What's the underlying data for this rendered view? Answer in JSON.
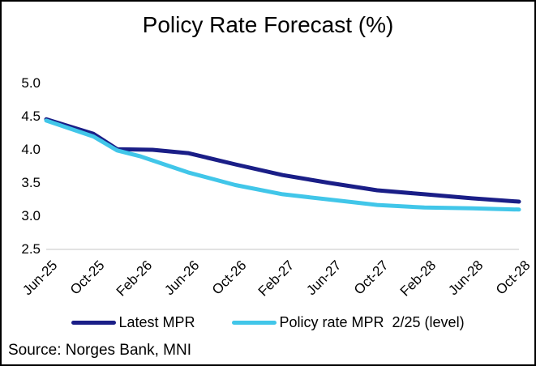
{
  "title": "Policy Rate Forecast (%)",
  "source_note": "Source: Norges Bank, MNI",
  "colors": {
    "latest_mpr": "#1A1E87",
    "mpr_2_25": "#41C6E9",
    "axis_line": "#D8D8D8",
    "text": "#000000",
    "background": "#FFFFFF"
  },
  "chart_data": {
    "type": "line",
    "title": "Policy Rate Forecast (%)",
    "xlabel": "",
    "ylabel": "",
    "x_unit": "months after Jun-2025",
    "xlim_months": [
      0,
      40
    ],
    "ylim": [
      2.5,
      5.0
    ],
    "grid": false,
    "axis_line": "bottom-only",
    "legend_position": "bottom",
    "x_tick_labels": [
      "Jun-25",
      "Oct-25",
      "Feb-26",
      "Jun-26",
      "Oct-26",
      "Feb-27",
      "Jun-27",
      "Oct-27",
      "Feb-28",
      "Jun-28",
      "Oct-28"
    ],
    "x_tick_months": [
      0,
      4,
      8,
      12,
      16,
      20,
      24,
      28,
      32,
      36,
      40
    ],
    "y_tick_labels": [
      "5.0",
      "4.5",
      "4.0",
      "3.5",
      "3.0",
      "2.5"
    ],
    "series": [
      {
        "name": "Latest MPR",
        "color": "#1A1E87",
        "points": [
          [
            0,
            4.46
          ],
          [
            4,
            4.24
          ],
          [
            6,
            4.01
          ],
          [
            9,
            4.0
          ],
          [
            12,
            3.95
          ],
          [
            16,
            3.78
          ],
          [
            20,
            3.62
          ],
          [
            24,
            3.5
          ],
          [
            28,
            3.39
          ],
          [
            32,
            3.33
          ],
          [
            36,
            3.27
          ],
          [
            40,
            3.22
          ]
        ]
      },
      {
        "name": "Policy rate MPR  2/25 (level)",
        "color": "#41C6E9",
        "points": [
          [
            0,
            4.44
          ],
          [
            4,
            4.2
          ],
          [
            6,
            3.99
          ],
          [
            8,
            3.9
          ],
          [
            12,
            3.66
          ],
          [
            16,
            3.47
          ],
          [
            20,
            3.33
          ],
          [
            24,
            3.25
          ],
          [
            28,
            3.17
          ],
          [
            32,
            3.13
          ],
          [
            36,
            3.12
          ],
          [
            40,
            3.1
          ]
        ]
      }
    ]
  }
}
